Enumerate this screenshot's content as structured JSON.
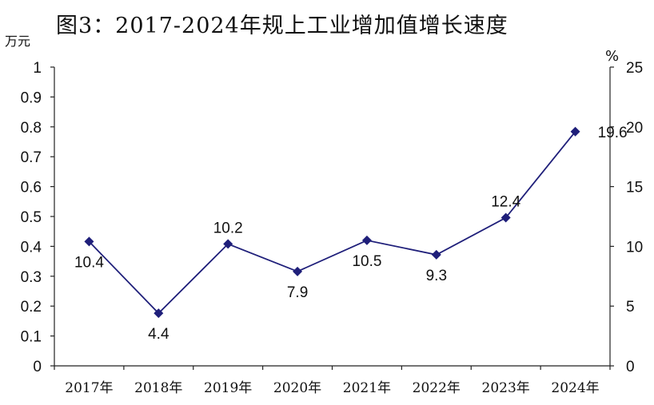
{
  "chart_data": {
    "type": "line",
    "title": "图3：2017-2024年规上工业增加值增长速度",
    "left_axis_unit": "万元",
    "right_axis_unit": "%",
    "categories": [
      "2017年",
      "2018年",
      "2019年",
      "2020年",
      "2021年",
      "2022年",
      "2023年",
      "2024年"
    ],
    "series": [
      {
        "values": [
          10.4,
          4.4,
          10.2,
          7.9,
          10.5,
          9.3,
          12.4,
          19.6
        ],
        "axis": "right",
        "color": "#1f1f7a"
      }
    ],
    "data_labels": [
      "10.4",
      "4.4",
      "10.2",
      "7.9",
      "10.5",
      "9.3",
      "12.4",
      "19.6"
    ],
    "left_ylim": [
      0,
      1
    ],
    "left_yticks": [
      "0",
      "0.1",
      "0.2",
      "0.3",
      "0.4",
      "0.5",
      "0.6",
      "0.7",
      "0.8",
      "0.9",
      "1"
    ],
    "right_ylim": [
      0,
      25
    ],
    "right_yticks": [
      "0",
      "5",
      "10",
      "15",
      "20",
      "25"
    ],
    "grid": false,
    "marker": "diamond"
  }
}
